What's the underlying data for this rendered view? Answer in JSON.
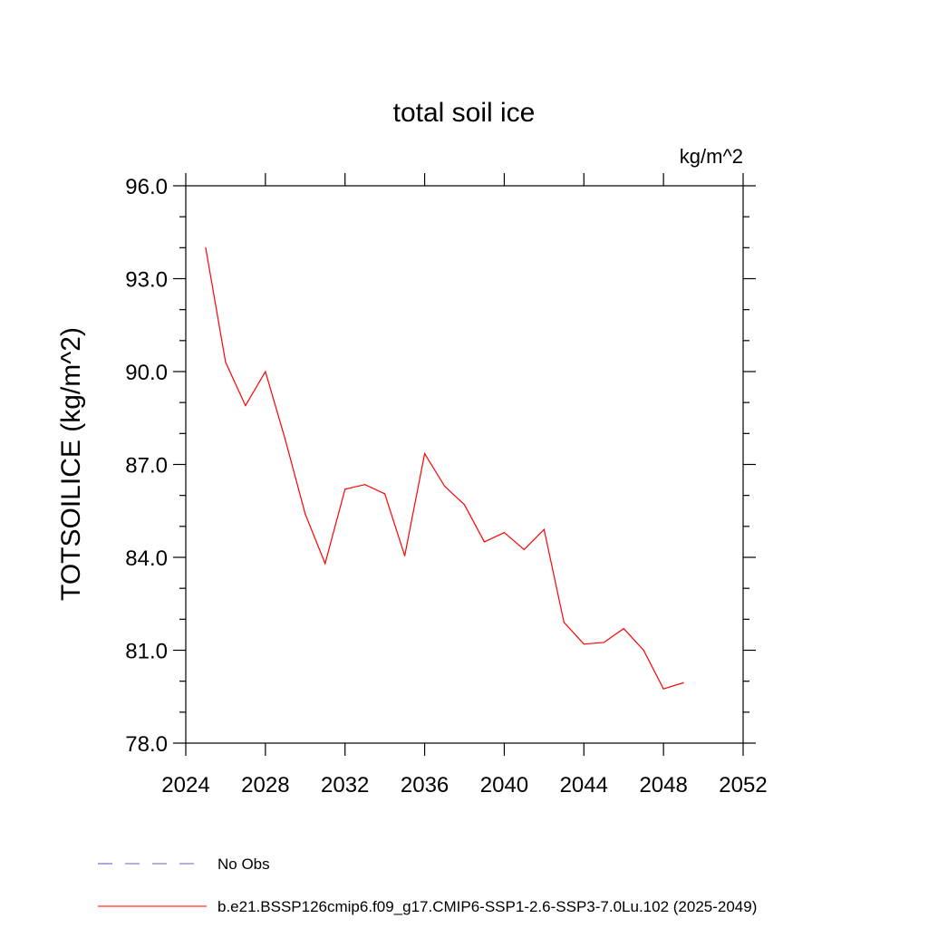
{
  "chart_data": {
    "type": "line",
    "title": "total soil ice",
    "units_label": "kg/m^2",
    "ylabel": "TOTSOILICE  (kg/m^2)",
    "xlabel": "",
    "xlim": [
      2024,
      2052
    ],
    "ylim": [
      78.0,
      96.0
    ],
    "x_ticks": [
      2024,
      2028,
      2032,
      2036,
      2040,
      2044,
      2048,
      2052
    ],
    "x_tick_labels": [
      "2024",
      "2028",
      "2032",
      "2036",
      "2040",
      "2044",
      "2048",
      "2052"
    ],
    "y_ticks": [
      78.0,
      81.0,
      84.0,
      87.0,
      90.0,
      93.0,
      96.0
    ],
    "y_tick_labels": [
      "78.0",
      "81.0",
      "84.0",
      "87.0",
      "90.0",
      "93.0",
      "96.0"
    ],
    "grid": false,
    "legend_position": "bottom",
    "series": [
      {
        "name": "b.e21.BSSP126cmip6.f09_g17.CMIP6-SSP1-2.6-SSP3-7.0Lu.102 (2025-2049)",
        "color": "#ff0000",
        "dash": "solid",
        "x": [
          2025,
          2026,
          2027,
          2028,
          2029,
          2030,
          2031,
          2032,
          2033,
          2034,
          2035,
          2036,
          2037,
          2038,
          2039,
          2040,
          2041,
          2042,
          2043,
          2044,
          2045,
          2046,
          2047,
          2048,
          2049
        ],
        "y": [
          94.0,
          90.3,
          88.9,
          90.0,
          87.8,
          85.4,
          83.8,
          86.2,
          86.35,
          86.05,
          84.05,
          87.35,
          86.3,
          85.7,
          84.5,
          84.8,
          84.25,
          84.9,
          81.9,
          81.2,
          81.25,
          81.7,
          81.0,
          79.75,
          79.95
        ]
      }
    ],
    "legend": [
      {
        "label": "No Obs",
        "color": "#6a5acd",
        "dash": "dashed"
      },
      {
        "label": "b.e21.BSSP126cmip6.f09_g17.CMIP6-SSP1-2.6-SSP3-7.0Lu.102 (2025-2049)",
        "color": "#ff0000",
        "dash": "solid"
      }
    ]
  }
}
